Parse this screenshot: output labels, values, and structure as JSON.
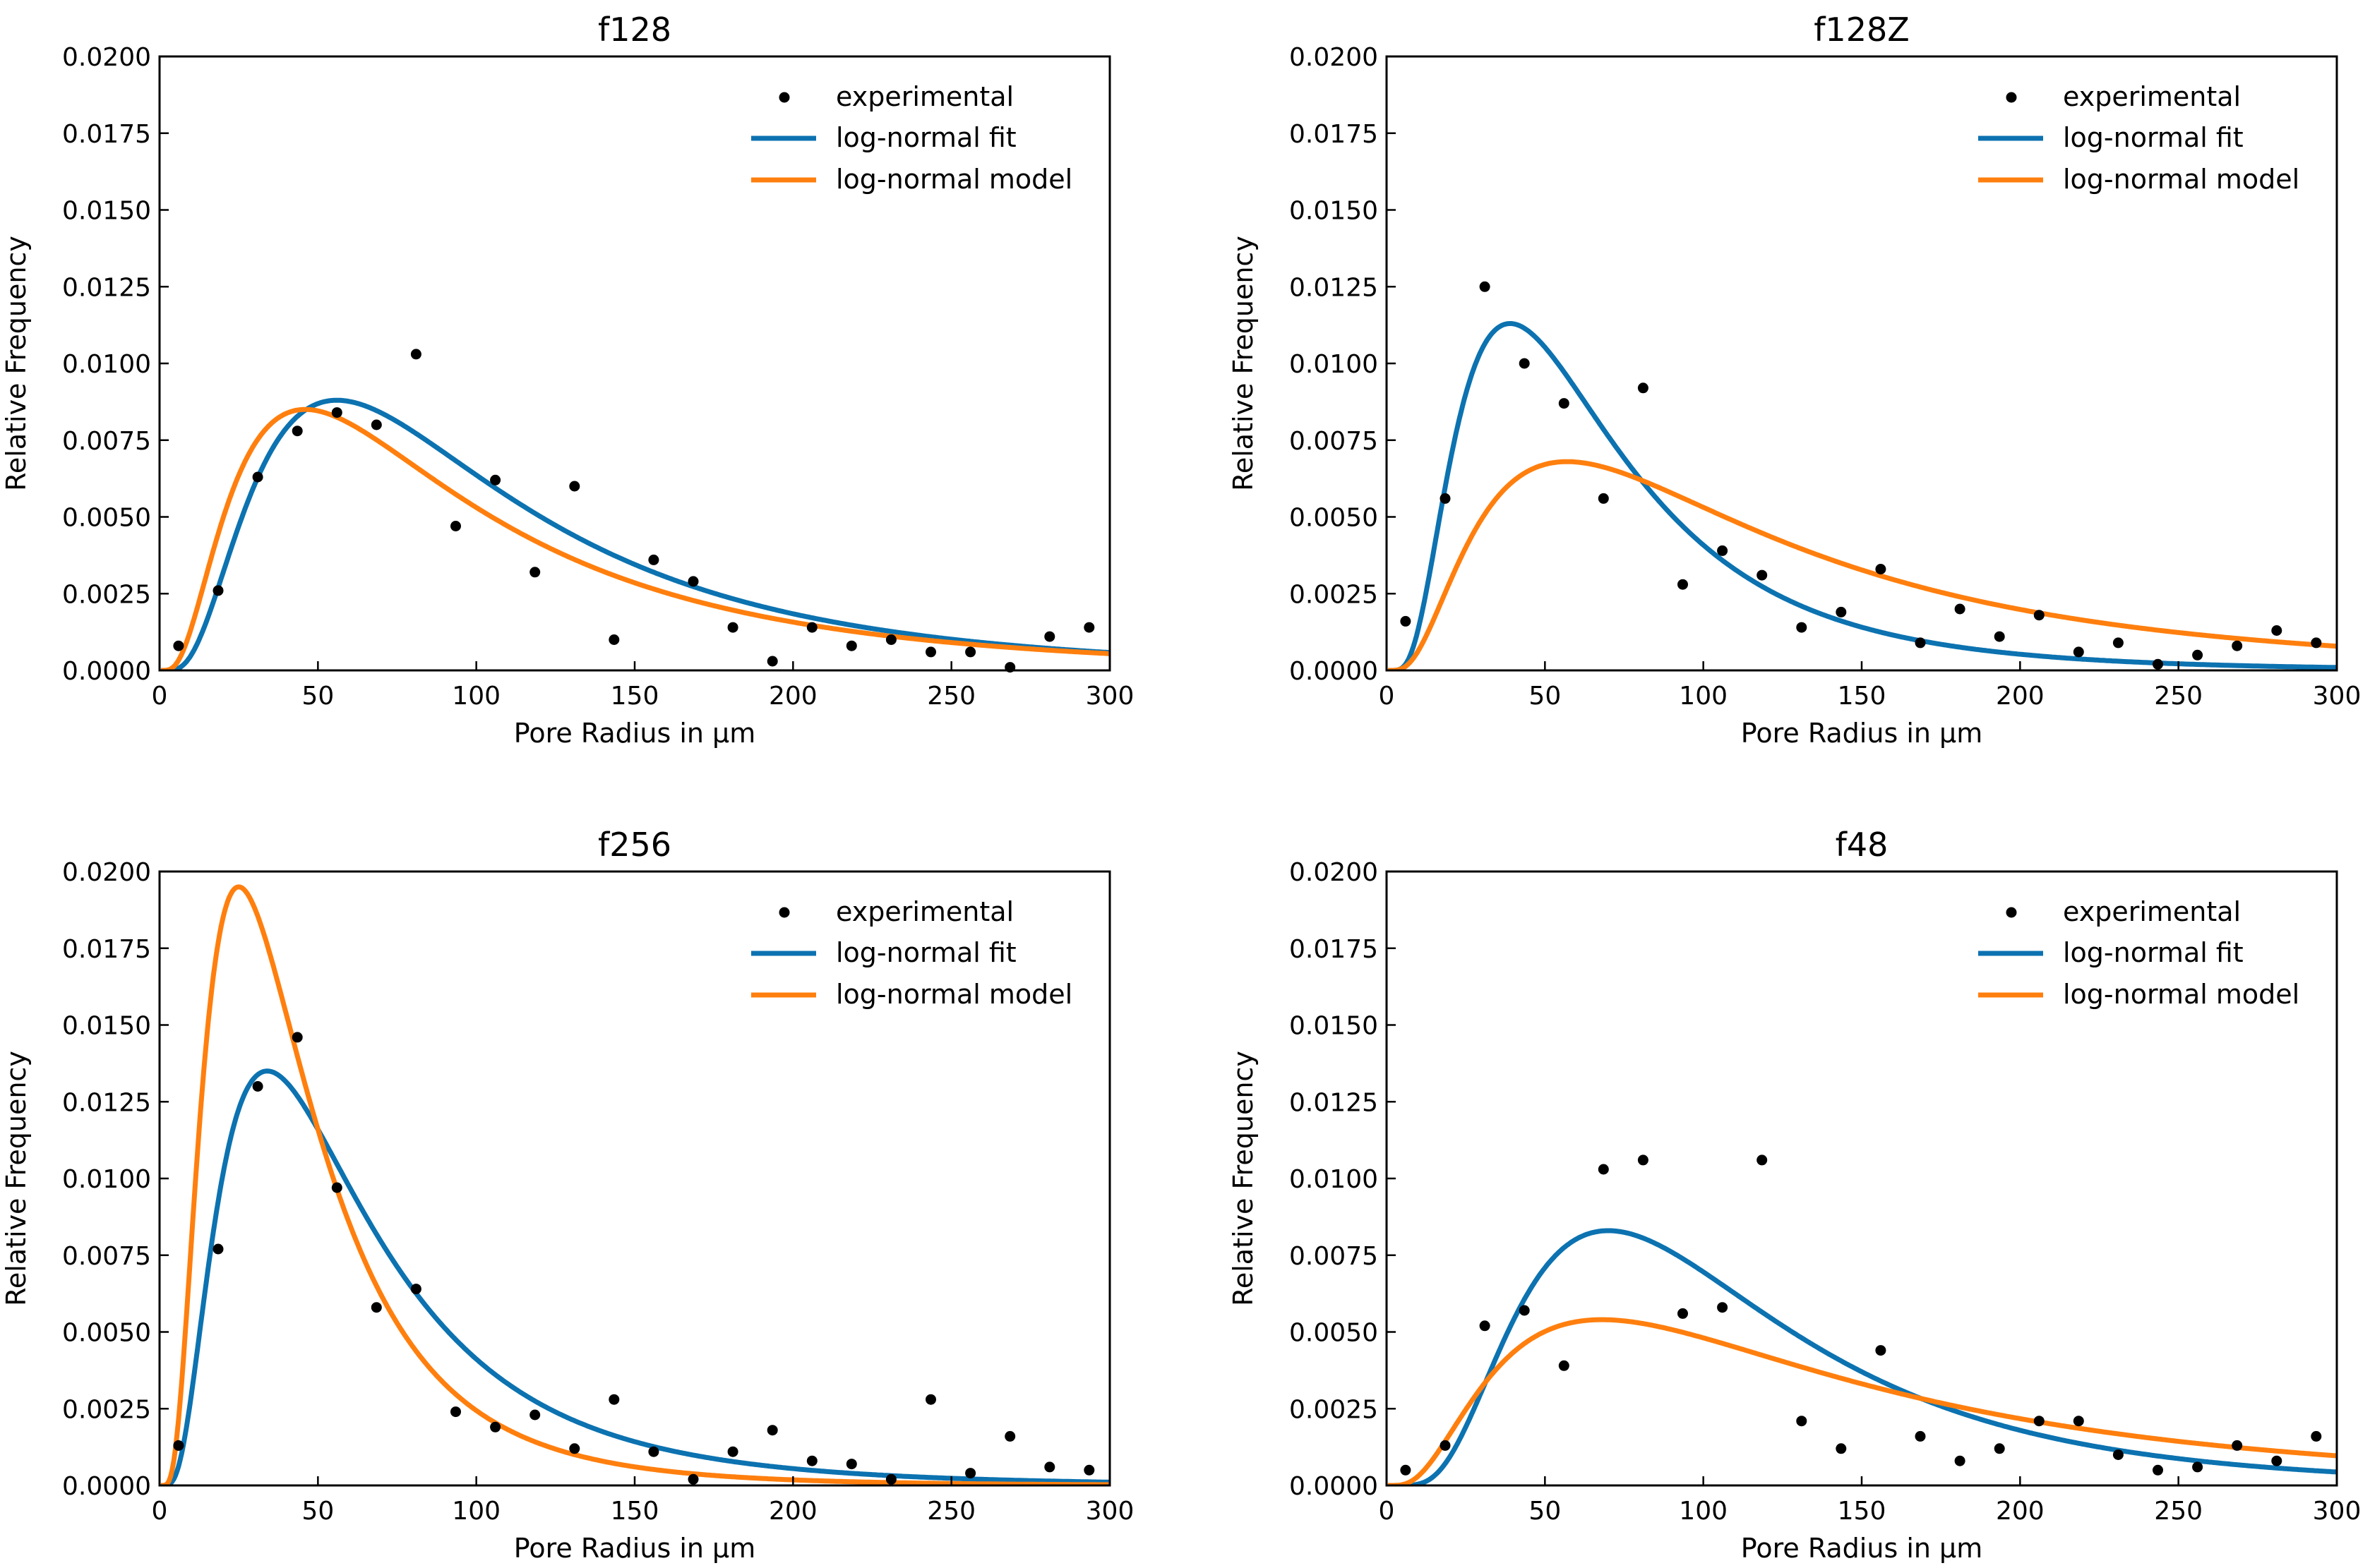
{
  "chart_data": [
    {
      "type": "scatter",
      "title": "f128",
      "xlabel": "Pore Radius in μm",
      "ylabel": "Relative Frequency",
      "xlim": [
        0,
        300
      ],
      "ylim": [
        0,
        0.02
      ],
      "xticks": [
        "0",
        "50",
        "100",
        "150",
        "200",
        "250",
        "300"
      ],
      "yticks": [
        "0.0000",
        "0.0025",
        "0.0050",
        "0.0075",
        "0.0100",
        "0.0125",
        "0.0150",
        "0.0175",
        "0.0200"
      ],
      "legend": [
        "experimental",
        "log-normal fit",
        "log-normal model"
      ],
      "series": [
        {
          "name": "experimental",
          "kind": "points",
          "x": [
            6,
            18.5,
            31,
            43.5,
            56,
            68.5,
            81,
            93.5,
            106,
            118.5,
            131,
            143.5,
            156,
            168.5,
            181,
            193.5,
            206,
            218.5,
            231,
            243.5,
            256,
            268.5,
            281,
            293.5
          ],
          "y": [
            0.0008,
            0.0026,
            0.0063,
            0.0078,
            0.0084,
            0.008,
            0.0103,
            0.0047,
            0.0062,
            0.0032,
            0.006,
            0.001,
            0.0036,
            0.0029,
            0.0014,
            0.0003,
            0.0014,
            0.0008,
            0.001,
            0.0006,
            0.0006,
            0.0001,
            0.0011,
            0.0014
          ]
        },
        {
          "name": "log-normal fit",
          "kind": "lognormal",
          "mode": 56,
          "peak": 0.0088,
          "sigma": 0.72
        },
        {
          "name": "log-normal model",
          "kind": "lognormal",
          "mode": 46,
          "peak": 0.0085,
          "sigma": 0.8
        }
      ]
    },
    {
      "type": "scatter",
      "title": "f128Z",
      "xlabel": "Pore Radius in μm",
      "ylabel": "Relative Frequency",
      "xlim": [
        0,
        300
      ],
      "ylim": [
        0,
        0.02
      ],
      "xticks": [
        "0",
        "50",
        "100",
        "150",
        "200",
        "250",
        "300"
      ],
      "yticks": [
        "0.0000",
        "0.0025",
        "0.0050",
        "0.0075",
        "0.0100",
        "0.0125",
        "0.0150",
        "0.0175",
        "0.0200"
      ],
      "legend": [
        "experimental",
        "log-normal fit",
        "log-normal model"
      ],
      "series": [
        {
          "name": "experimental",
          "kind": "points",
          "x": [
            6,
            18.5,
            31,
            43.5,
            56,
            68.5,
            81,
            93.5,
            106,
            118.5,
            131,
            143.5,
            156,
            168.5,
            181,
            193.5,
            206,
            218.5,
            231,
            243.5,
            256,
            268.5,
            281,
            293.5
          ],
          "y": [
            0.0016,
            0.0056,
            0.0125,
            0.01,
            0.0087,
            0.0056,
            0.0092,
            0.0028,
            0.0039,
            0.0031,
            0.0014,
            0.0019,
            0.0033,
            0.0009,
            0.002,
            0.0011,
            0.0018,
            0.0006,
            0.0009,
            0.0002,
            0.0005,
            0.0008,
            0.0013,
            0.0009
          ]
        },
        {
          "name": "log-normal fit",
          "kind": "lognormal",
          "mode": 39,
          "peak": 0.0113,
          "sigma": 0.66
        },
        {
          "name": "log-normal model",
          "kind": "lognormal",
          "mode": 57,
          "peak": 0.0068,
          "sigma": 0.8
        }
      ]
    },
    {
      "type": "scatter",
      "title": "f256",
      "xlabel": "Pore Radius in μm",
      "ylabel": "Relative Frequency",
      "xlim": [
        0,
        300
      ],
      "ylim": [
        0,
        0.02
      ],
      "xticks": [
        "0",
        "50",
        "100",
        "150",
        "200",
        "250",
        "300"
      ],
      "yticks": [
        "0.0000",
        "0.0025",
        "0.0050",
        "0.0075",
        "0.0100",
        "0.0125",
        "0.0150",
        "0.0175",
        "0.0200"
      ],
      "legend": [
        "experimental",
        "log-normal fit",
        "log-normal model"
      ],
      "series": [
        {
          "name": "experimental",
          "kind": "points",
          "x": [
            6,
            18.5,
            31,
            43.5,
            56,
            68.5,
            81,
            93.5,
            106,
            118.5,
            131,
            143.5,
            156,
            168.5,
            181,
            193.5,
            206,
            218.5,
            231,
            243.5,
            256,
            268.5,
            281,
            293.5
          ],
          "y": [
            0.0013,
            0.0077,
            0.013,
            0.0146,
            0.0097,
            0.0058,
            0.0064,
            0.0024,
            0.0019,
            0.0023,
            0.0012,
            0.0028,
            0.0011,
            0.0002,
            0.0011,
            0.0018,
            0.0008,
            0.0007,
            0.0002,
            0.0028,
            0.0004,
            0.0016,
            0.0006,
            0.0005
          ]
        },
        {
          "name": "log-normal fit",
          "kind": "lognormal",
          "mode": 34,
          "peak": 0.0135,
          "sigma": 0.7
        },
        {
          "name": "log-normal model",
          "kind": "lognormal",
          "mode": 25,
          "peak": 0.0195,
          "sigma": 0.68
        }
      ]
    },
    {
      "type": "scatter",
      "title": "f48",
      "xlabel": "Pore Radius in μm",
      "ylabel": "Relative Frequency",
      "xlim": [
        0,
        300
      ],
      "ylim": [
        0,
        0.02
      ],
      "xticks": [
        "0",
        "50",
        "100",
        "150",
        "200",
        "250",
        "300"
      ],
      "yticks": [
        "0.0000",
        "0.0025",
        "0.0050",
        "0.0075",
        "0.0100",
        "0.0125",
        "0.0150",
        "0.0175",
        "0.0200"
      ],
      "legend": [
        "experimental",
        "log-normal fit",
        "log-normal model"
      ],
      "series": [
        {
          "name": "experimental",
          "kind": "points",
          "x": [
            6,
            18.5,
            31,
            43.5,
            56,
            68.5,
            81,
            93.5,
            106,
            118.5,
            131,
            143.5,
            156,
            168.5,
            181,
            193.5,
            206,
            218.5,
            231,
            243.5,
            256,
            268.5,
            281,
            293.5
          ],
          "y": [
            0.0005,
            0.0013,
            0.0052,
            0.0057,
            0.0039,
            0.0103,
            0.0106,
            0.0056,
            0.0058,
            0.0106,
            0.0021,
            0.0012,
            0.0044,
            0.0016,
            0.0008,
            0.0012,
            0.0021,
            0.0021,
            0.001,
            0.0005,
            0.0006,
            0.0013,
            0.0008,
            0.0016
          ]
        },
        {
          "name": "log-normal fit",
          "kind": "lognormal",
          "mode": 70,
          "peak": 0.0083,
          "sigma": 0.6
        },
        {
          "name": "log-normal model",
          "kind": "lognormal",
          "mode": 68,
          "peak": 0.0054,
          "sigma": 0.8
        }
      ]
    }
  ],
  "colors": {
    "experimental": "#000000",
    "fit": "#1f77b4",
    "fit_line": "#0c72b0",
    "model": "#ff7f0e",
    "axes": "#000000"
  }
}
